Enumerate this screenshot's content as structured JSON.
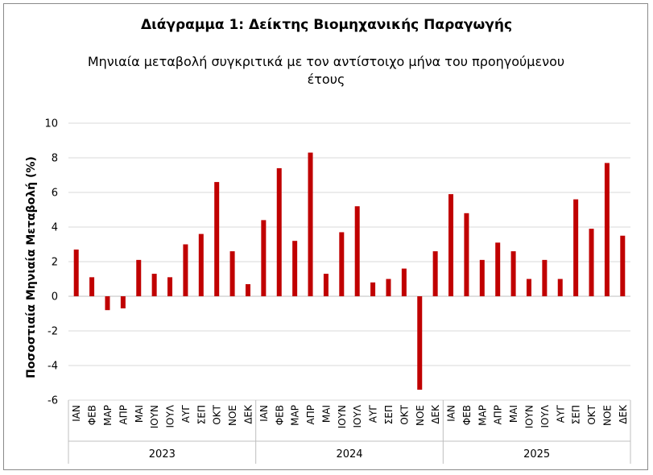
{
  "chart_data": {
    "type": "bar",
    "title": "Διάγραμμα 1: Δείκτης Βιομηχανικής Παραγωγής",
    "subtitle": "Μηνιαία μεταβολή συγκριτικά με τον αντίστοιχο μήνα του προηγούμενου έτους",
    "ylabel": "Ποσοστιαία Μηνιαία Μεταβολή (%)",
    "xlabel": "",
    "ylim": [
      -6,
      10
    ],
    "yticks": [
      10,
      8,
      6,
      4,
      2,
      0,
      -2,
      -4,
      -6
    ],
    "grid": true,
    "color": "#c00000",
    "groups": [
      {
        "year": "2023",
        "months": [
          "ΙΑΝ",
          "ΦΕΒ",
          "ΜΑΡ",
          "ΑΠΡ",
          "ΜΑΙ",
          "ΙΟΥΝ",
          "ΙΟΥΛ",
          "ΑΥΓ",
          "ΣΕΠ",
          "ΟΚΤ",
          "ΝΟΕ",
          "ΔΕΚ"
        ],
        "values": [
          2.7,
          1.1,
          -0.8,
          -0.7,
          2.1,
          1.3,
          1.1,
          3.0,
          3.6,
          6.6,
          2.6,
          0.7
        ]
      },
      {
        "year": "2024",
        "months": [
          "ΙΑΝ",
          "ΦΕΒ",
          "ΜΑΡ",
          "ΑΠΡ",
          "ΜΑΙ",
          "ΙΟΥΝ",
          "ΙΟΥΛ",
          "ΑΥΓ",
          "ΣΕΠ",
          "ΟΚΤ",
          "ΝΟΕ",
          "ΔΕΚ"
        ],
        "values": [
          4.4,
          7.4,
          3.2,
          8.3,
          1.3,
          3.7,
          5.2,
          0.8,
          1.0,
          1.6,
          -5.4,
          2.6
        ]
      },
      {
        "year": "2025",
        "months": [
          "ΙΑΝ",
          "ΦΕΒ",
          "ΜΑΡ",
          "ΑΠΡ",
          "ΜΑΙ",
          "ΙΟΥΝ",
          "ΙΟΥΛ",
          "ΑΥΓ",
          "ΣΕΠ",
          "ΟΚΤ",
          "ΝΟΕ",
          "ΔΕΚ"
        ],
        "values": [
          5.9,
          4.8,
          2.1,
          3.1,
          2.6,
          1.0,
          2.1,
          1.0,
          5.6,
          3.9,
          7.7,
          3.5
        ]
      }
    ]
  }
}
